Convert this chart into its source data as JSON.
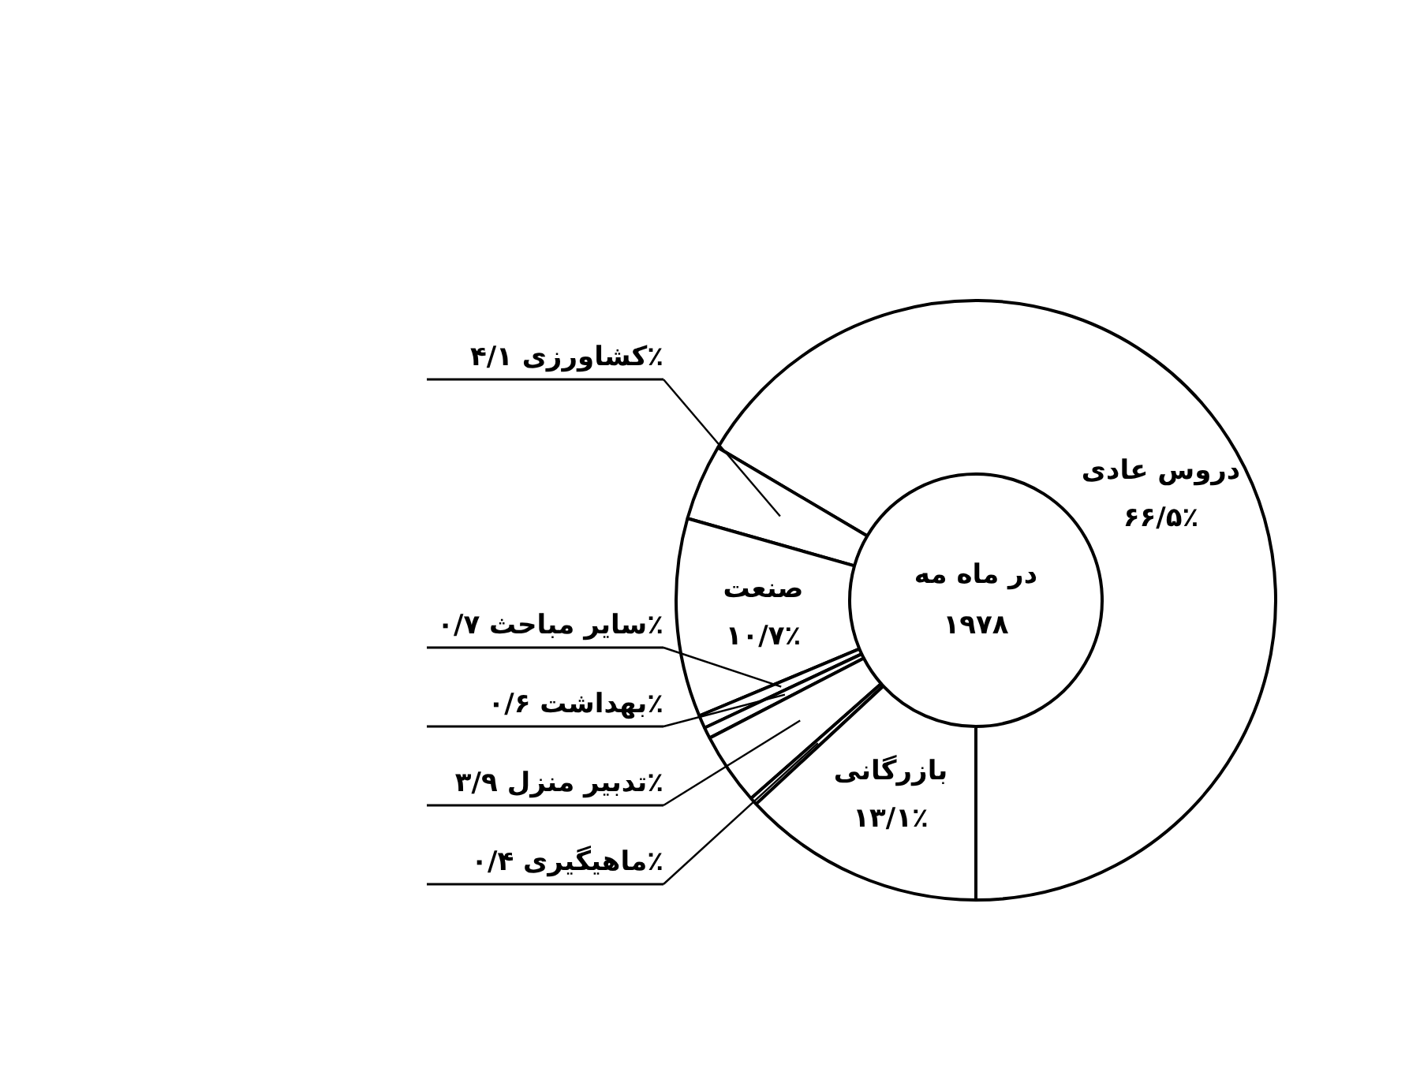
{
  "chart_data": {
    "type": "donut",
    "title": "در ماه مه\n۱۹۷۸",
    "categories": [
      "دروس عادی",
      "کشاورزی",
      "صنعت",
      "سایر مباحث",
      "بهداشت",
      "تدبیر منزل",
      "ماهیگیری",
      "بازرگانی"
    ],
    "values": [
      66.5,
      4.1,
      10.7,
      0.7,
      0.6,
      3.9,
      0.4,
      13.1
    ],
    "value_labels": [
      "۶۶/۵٪",
      "۴/۱٪",
      "۱۰/۷٪",
      "۰/۷٪",
      "۰/۶٪",
      "۳/۹٪",
      "۰/۴٪",
      "۱۳/۱٪"
    ],
    "colors": [
      "#ffffff",
      "#ffffff",
      "#ffffff",
      "#ffffff",
      "#ffffff",
      "#ffffff",
      "#ffffff",
      "#ffffff"
    ]
  }
}
